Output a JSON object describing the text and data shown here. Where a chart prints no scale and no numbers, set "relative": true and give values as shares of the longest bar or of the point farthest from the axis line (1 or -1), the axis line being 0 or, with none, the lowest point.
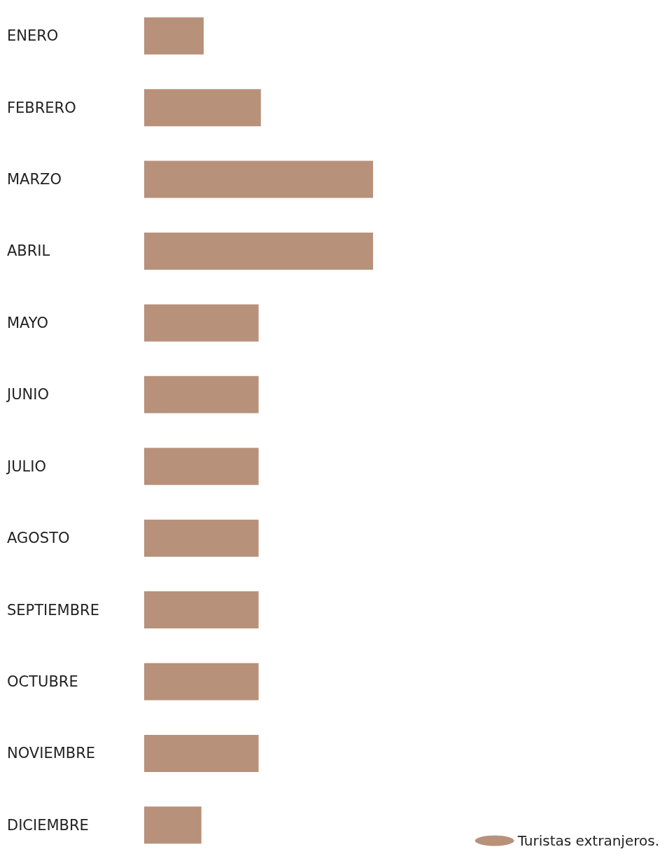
{
  "chart_data": {
    "type": "bar",
    "orientation": "horizontal",
    "relative": true,
    "categories": [
      "ENERO",
      "FEBRERO",
      "MARZO",
      "ABRIL",
      "MAYO",
      "JUNIO",
      "JULIO",
      "AGOSTO",
      "SEPTIEMBRE",
      "OCTUBRE",
      "NOVIEMBRE",
      "DICIEMBRE"
    ],
    "series": [
      {
        "name": "Turistas extranjeros.",
        "color": "#b8917a",
        "values": [
          0.26,
          0.51,
          1,
          1,
          0.5,
          0.5,
          0.5,
          0.5,
          0.5,
          0.5,
          0.5,
          0.25
        ]
      }
    ],
    "legend": "bottom right"
  }
}
